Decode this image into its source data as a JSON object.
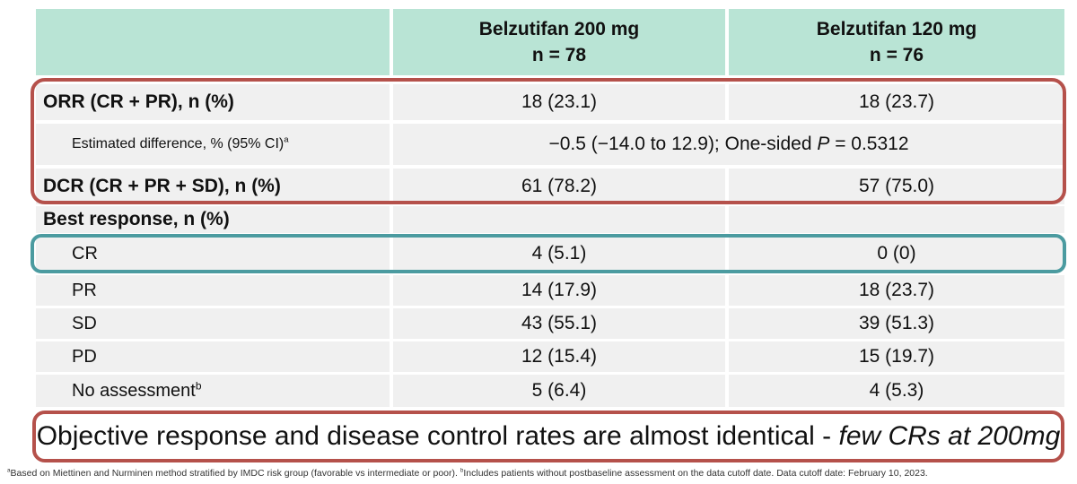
{
  "header": {
    "col2_line1": "Belzutifan 200 mg",
    "col2_line2": "n = 78",
    "col3_line1": "Belzutifan 120 mg",
    "col3_line2": "n = 76"
  },
  "rows": {
    "orr": {
      "label": "ORR (CR + PR), n (%)",
      "v200": "18 (23.1)",
      "v120": "18 (23.7)"
    },
    "est": {
      "label": "Estimated difference, % (95% CI)",
      "sup": "a",
      "value_prefix": "−0.5 (−14.0 to 12.9); One-sided ",
      "value_p": "P",
      "value_suffix": " = 0.5312"
    },
    "dcr": {
      "label": "DCR (CR + PR + SD), n (%)",
      "v200": "61 (78.2)",
      "v120": "57 (75.0)"
    },
    "best": {
      "label": "Best response, n (%)"
    },
    "cr": {
      "label": "CR",
      "v200": "4 (5.1)",
      "v120": "0 (0)"
    },
    "pr": {
      "label": "PR",
      "v200": "14 (17.9)",
      "v120": "18 (23.7)"
    },
    "sd": {
      "label": "SD",
      "v200": "43 (55.1)",
      "v120": "39 (51.3)"
    },
    "pd": {
      "label": "PD",
      "v200": "12 (15.4)",
      "v120": "15 (19.7)"
    },
    "noassess": {
      "label": "No assessment",
      "sup": "b",
      "v200": "5 (6.4)",
      "v120": "4 (5.3)"
    }
  },
  "callout": {
    "text": "Objective response and disease control rates are almost identical - ",
    "italic": "few CRs at 200mg"
  },
  "footnote": {
    "sup_a": "a",
    "text_a": "Based on Miettinen and Nurminen method stratified by IMDC risk group (favorable vs intermediate or poor). ",
    "sup_b": "b",
    "text_b": "Includes patients without postbaseline assessment on the data cutoff date. Data cutoff date: February 10, 2023."
  },
  "colors": {
    "header_bg": "#b9e4d5",
    "row_bg": "#f0f0f0",
    "red_box": "#b5514b",
    "teal_box": "#4b9ba0"
  }
}
